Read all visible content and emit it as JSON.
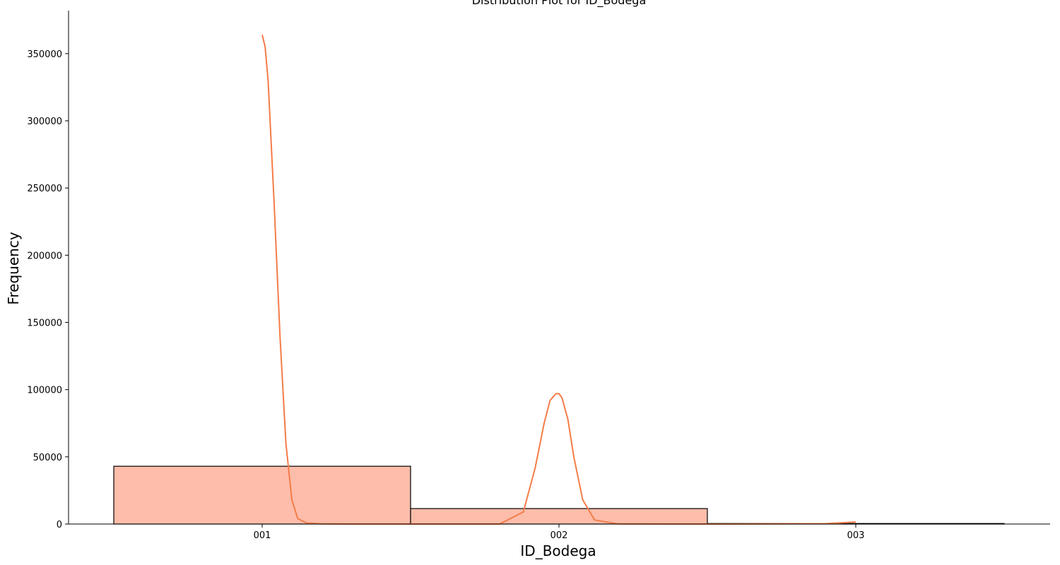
{
  "chart_data": {
    "type": "bar",
    "title": "Distribution Plot for ID_Bodega",
    "xlabel": "ID_Bodega",
    "ylabel": "Frequency",
    "categories": [
      "001",
      "002",
      "003"
    ],
    "series": [
      {
        "values": [
          43000,
          11500,
          400
        ]
      }
    ],
    "kde": {
      "x": [
        0.0,
        0.01,
        0.02,
        0.04,
        0.06,
        0.08,
        0.1,
        0.12,
        0.15,
        0.2,
        0.3,
        0.5,
        0.8,
        0.88,
        0.92,
        0.95,
        0.97,
        0.99,
        1.0,
        1.01,
        1.03,
        1.05,
        1.08,
        1.12,
        1.2,
        1.5,
        1.9,
        2.0
      ],
      "y": [
        364000,
        355000,
        330000,
        240000,
        140000,
        60000,
        18000,
        4000,
        800,
        100,
        0,
        0,
        0,
        9000,
        42000,
        75000,
        92000,
        97000,
        97000,
        94000,
        78000,
        50000,
        18000,
        3000,
        100,
        0,
        300,
        1500
      ]
    },
    "y_ticks": [
      "0",
      "50000",
      "100000",
      "150000",
      "200000",
      "250000",
      "300000",
      "350000"
    ],
    "ylim": [
      0,
      382000
    ],
    "grid": false,
    "colors": {
      "bar_fill": "#fdbdaa",
      "bar_edge": "#000000",
      "kde_line": "#f47c48"
    }
  }
}
